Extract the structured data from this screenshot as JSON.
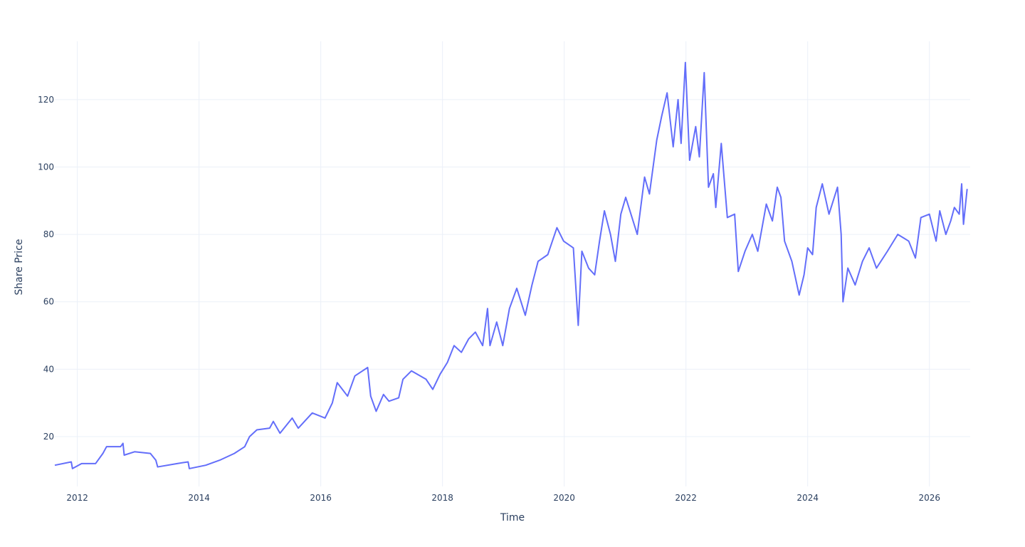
{
  "chart_data": {
    "type": "line",
    "xlabel": "Time",
    "ylabel": "Share Price",
    "color": "#636efa",
    "grid": true,
    "xlim": [
      2011.63,
      2026.67
    ],
    "ylim": [
      5.2,
      137.3
    ],
    "xticks": [
      2012,
      2014,
      2016,
      2018,
      2020,
      2022,
      2024,
      2026
    ],
    "yticks": [
      20,
      40,
      60,
      80,
      100,
      120
    ],
    "x": [
      2011.63,
      2011.9,
      2011.92,
      2012.07,
      2012.3,
      2012.42,
      2012.48,
      2012.71,
      2012.75,
      2012.77,
      2012.94,
      2013.2,
      2013.29,
      2013.32,
      2013.64,
      2013.82,
      2013.84,
      2014.11,
      2014.34,
      2014.58,
      2014.75,
      2014.83,
      2014.95,
      2015.16,
      2015.22,
      2015.33,
      2015.53,
      2015.63,
      2015.86,
      2016.07,
      2016.19,
      2016.27,
      2016.44,
      2016.56,
      2016.77,
      2016.82,
      2016.91,
      2017.03,
      2017.12,
      2017.28,
      2017.35,
      2017.49,
      2017.73,
      2017.84,
      2017.96,
      2018.08,
      2018.19,
      2018.31,
      2018.43,
      2018.54,
      2018.66,
      2018.74,
      2018.78,
      2018.89,
      2018.99,
      2019.1,
      2019.22,
      2019.36,
      2019.47,
      2019.57,
      2019.73,
      2019.88,
      2019.99,
      2020.15,
      2020.23,
      2020.29,
      2020.4,
      2020.5,
      2020.58,
      2020.66,
      2020.76,
      2020.84,
      2020.93,
      2021.01,
      2021.2,
      2021.32,
      2021.4,
      2021.52,
      2021.6,
      2021.69,
      2021.79,
      2021.87,
      2021.92,
      2021.99,
      2022.06,
      2022.16,
      2022.22,
      2022.3,
      2022.37,
      2022.45,
      2022.49,
      2022.58,
      2022.68,
      2022.8,
      2022.86,
      2022.97,
      2023.09,
      2023.18,
      2023.32,
      2023.42,
      2023.5,
      2023.56,
      2023.62,
      2023.74,
      2023.86,
      2023.94,
      2024.0,
      2024.08,
      2024.14,
      2024.24,
      2024.35,
      2024.49,
      2024.55,
      2024.58,
      2024.66,
      2024.78,
      2024.9,
      2025.01,
      2025.13,
      2025.31,
      2025.48,
      2025.66,
      2025.77,
      2025.86,
      2026.0,
      2026.11,
      2026.17,
      2026.27,
      2026.35,
      2026.41,
      2026.49,
      2026.53,
      2026.56,
      2026.62
    ],
    "values": [
      11.5,
      12.5,
      10.5,
      12,
      12,
      15,
      17,
      17,
      18,
      14.5,
      15.5,
      15,
      13,
      11,
      12,
      12.5,
      10.5,
      11.5,
      13,
      15,
      17,
      20,
      22,
      22.5,
      24.5,
      21,
      25.5,
      22.5,
      27,
      25.5,
      30,
      36,
      32,
      38,
      40.5,
      32,
      27.5,
      32.5,
      30.5,
      31.5,
      37,
      39.5,
      37,
      34,
      38.5,
      42,
      47,
      45,
      49,
      51,
      47,
      58,
      47,
      54,
      47,
      58,
      64,
      56,
      65,
      72,
      74,
      82,
      78,
      76,
      53,
      75,
      70,
      68,
      78,
      87,
      80,
      72,
      86,
      91,
      80,
      97,
      92,
      108,
      115,
      122,
      106,
      120,
      107,
      131,
      102,
      112,
      103,
      128,
      94,
      98,
      88,
      107,
      85,
      86,
      69,
      75,
      80,
      75,
      89,
      84,
      94,
      91,
      78,
      72,
      62,
      68,
      76,
      74,
      88,
      95,
      86,
      94,
      80,
      60,
      70,
      65,
      72,
      76,
      70,
      75,
      80,
      78,
      73,
      85,
      86,
      78,
      87,
      80,
      84,
      88,
      86,
      95,
      83,
      93.5
    ]
  }
}
